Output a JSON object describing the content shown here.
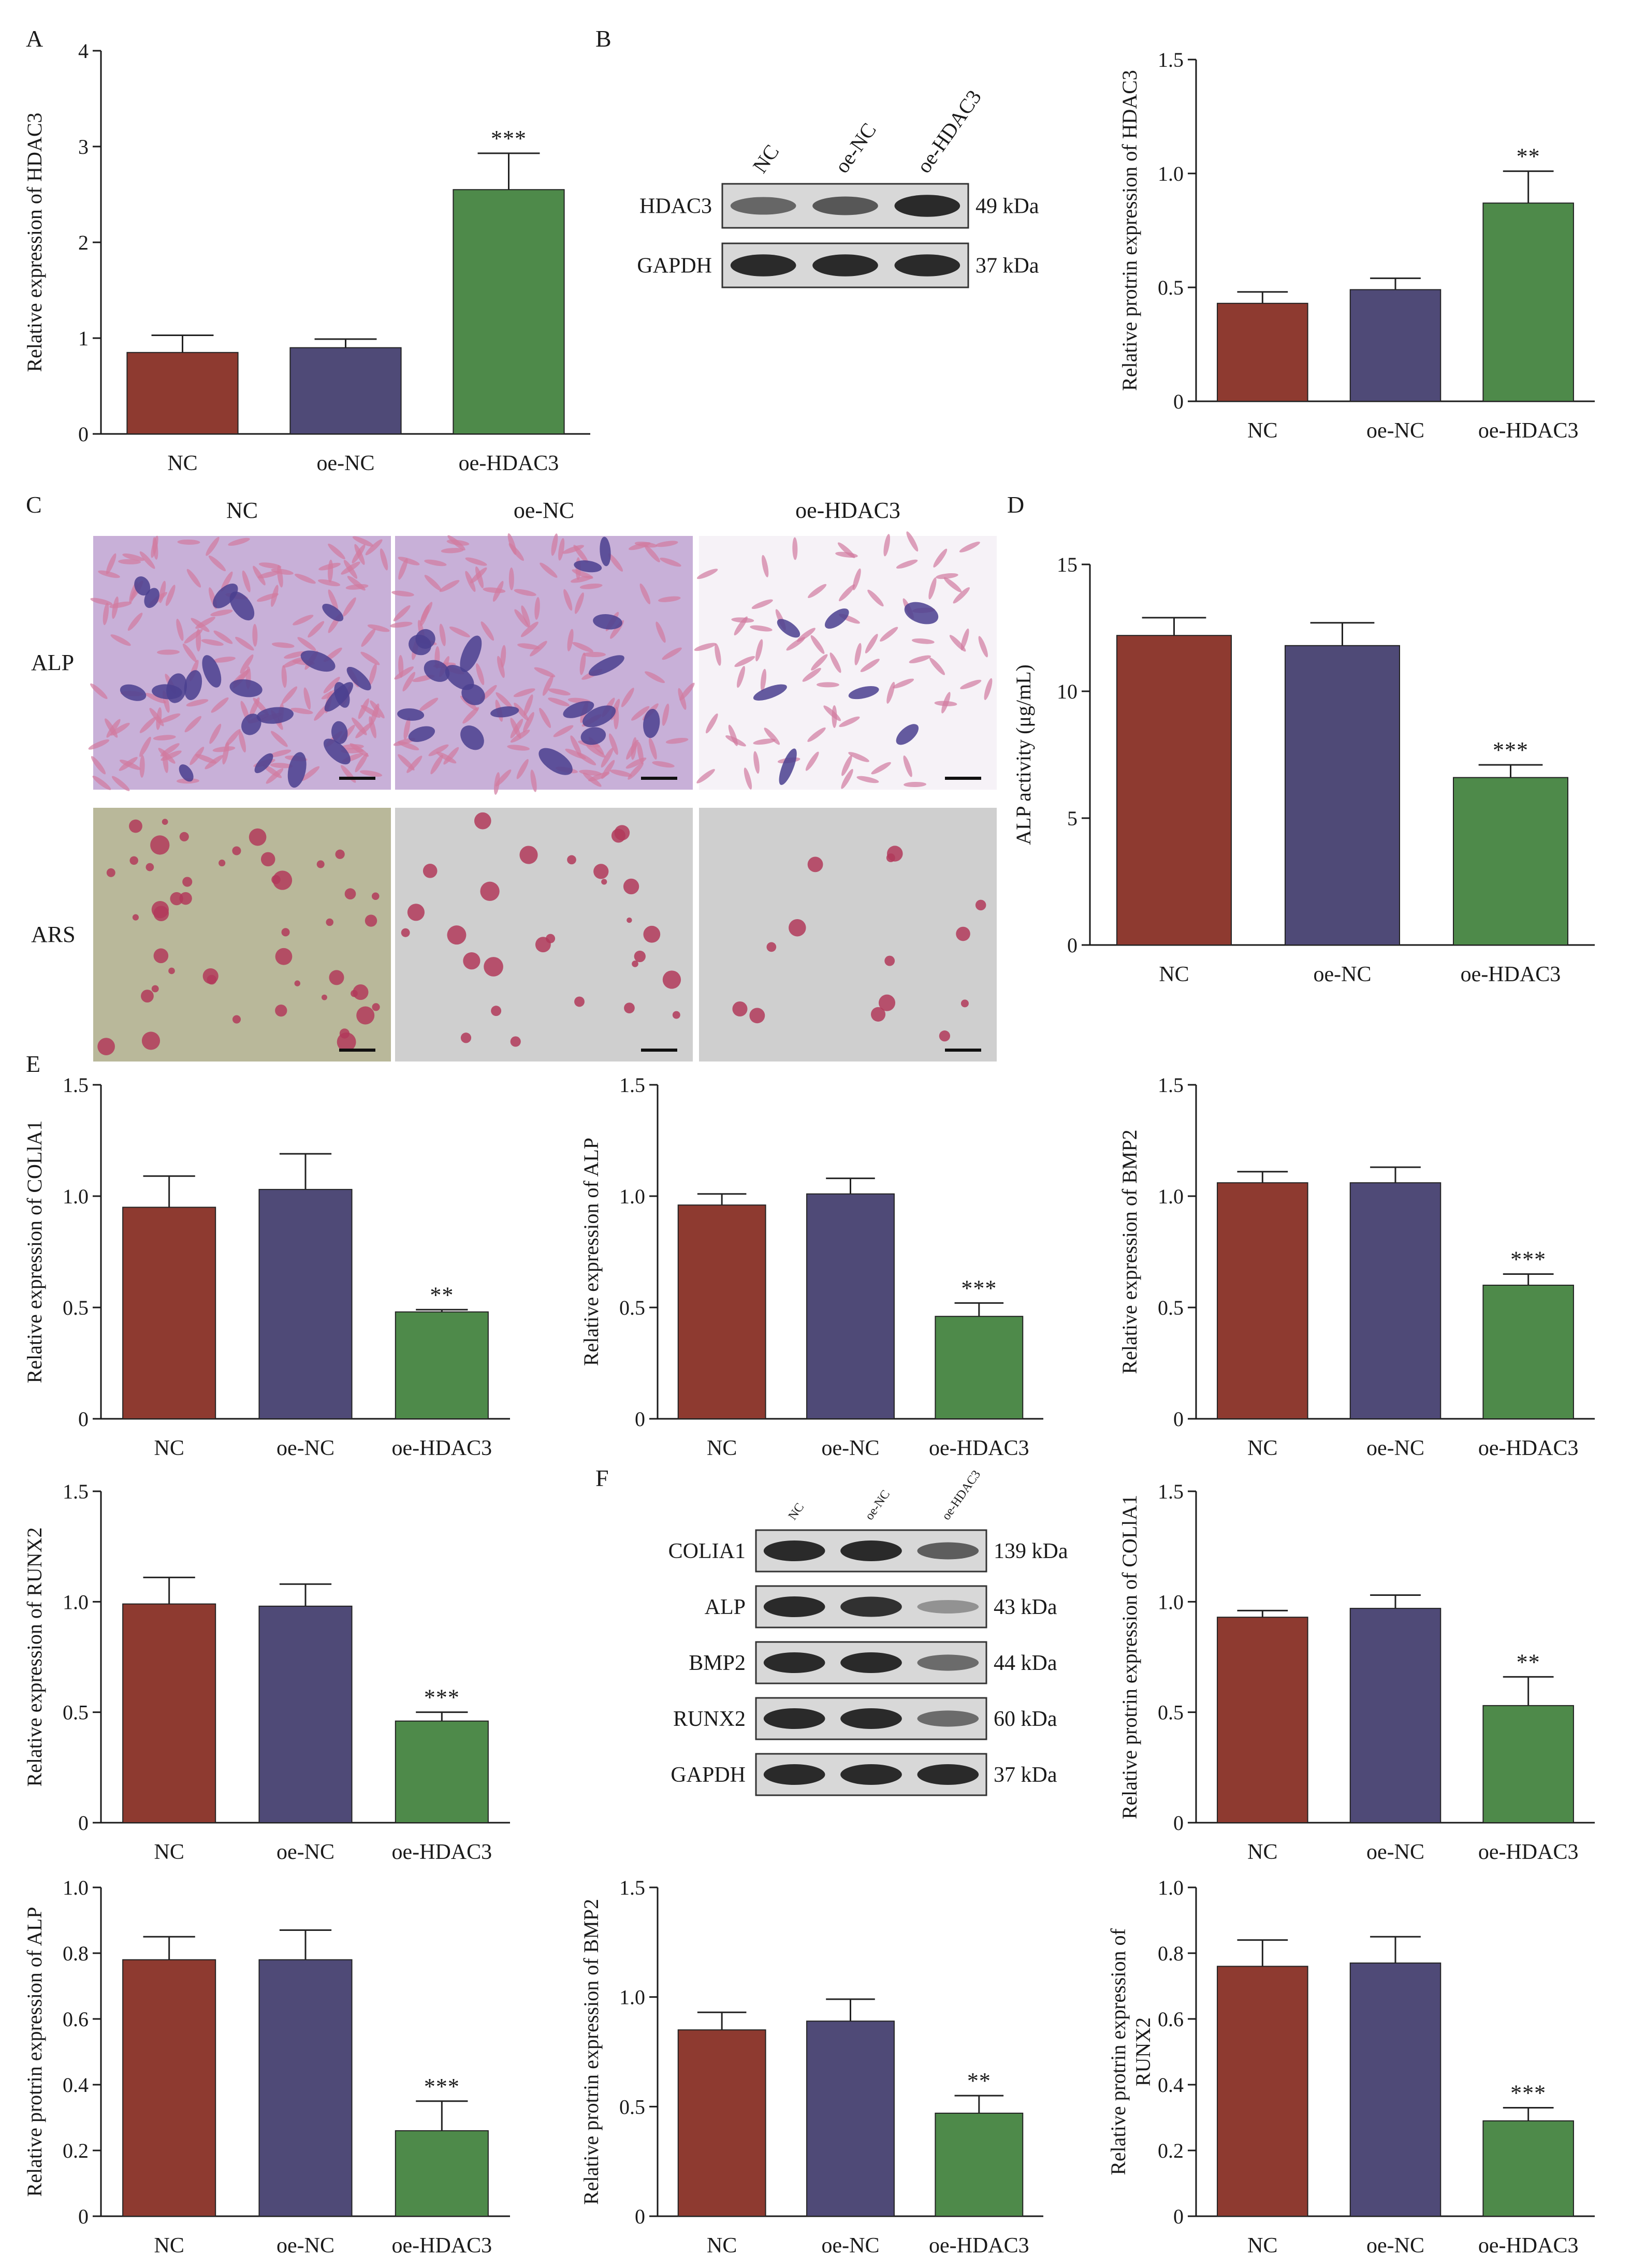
{
  "colors": {
    "NC": "#8e3a30",
    "oe-NC": "#4f4a77",
    "oe-HDAC3": "#4e8a4a",
    "axis": "#1a1a1a",
    "band": "#2a2a2a",
    "blot_bg": "#d8d8d8",
    "alp_stain": "#b89ac8",
    "ars_bg": "#cfcfcf",
    "ars_spot": "#b23a5a"
  },
  "panel_letters": [
    "A",
    "B",
    "C",
    "D",
    "E",
    "F"
  ],
  "chart_data": [
    {
      "id": "A",
      "type": "bar",
      "categories": [
        "NC",
        "oe-NC",
        "oe-HDAC3"
      ],
      "values": [
        0.85,
        0.9,
        2.55
      ],
      "errors": [
        0.18,
        0.09,
        0.38
      ],
      "significance": [
        "",
        "",
        "***"
      ],
      "ylabel": "Relative expression of HDAC3",
      "ylim": [
        0,
        4
      ],
      "yticks": [
        "0",
        "1",
        "2",
        "3",
        "4"
      ]
    },
    {
      "id": "B",
      "type": "bar",
      "categories": [
        "NC",
        "oe-NC",
        "oe-HDAC3"
      ],
      "values": [
        0.43,
        0.49,
        0.87
      ],
      "errors": [
        0.05,
        0.05,
        0.14
      ],
      "significance": [
        "",
        "",
        "**"
      ],
      "ylabel": "Relative protrin expression of HDAC3",
      "ylim": [
        0,
        1.5
      ],
      "yticks": [
        "0",
        "0.5",
        "1.0",
        "1.5"
      ]
    },
    {
      "id": "D",
      "type": "bar",
      "categories": [
        "NC",
        "oe-NC",
        "oe-HDAC3"
      ],
      "values": [
        12.2,
        11.8,
        6.6
      ],
      "errors": [
        0.7,
        0.9,
        0.5
      ],
      "significance": [
        "",
        "",
        "***"
      ],
      "ylabel": "ALP activity (μg/mL)",
      "ylim": [
        0,
        15
      ],
      "yticks": [
        "0",
        "5",
        "10",
        "15"
      ]
    },
    {
      "id": "E1",
      "type": "bar",
      "categories": [
        "NC",
        "oe-NC",
        "oe-HDAC3"
      ],
      "values": [
        0.95,
        1.03,
        0.48
      ],
      "errors": [
        0.14,
        0.16,
        0.01
      ],
      "significance": [
        "",
        "",
        "**"
      ],
      "ylabel": "Relative expression of COLlA1",
      "ylim": [
        0,
        1.5
      ],
      "yticks": [
        "0",
        "0.5",
        "1.0",
        "1.5"
      ]
    },
    {
      "id": "E2",
      "type": "bar",
      "categories": [
        "NC",
        "oe-NC",
        "oe-HDAC3"
      ],
      "values": [
        0.96,
        1.01,
        0.46
      ],
      "errors": [
        0.05,
        0.07,
        0.06
      ],
      "significance": [
        "",
        "",
        "***"
      ],
      "ylabel": "Relative expression of ALP",
      "ylim": [
        0,
        1.5
      ],
      "yticks": [
        "0",
        "0.5",
        "1.0",
        "1.5"
      ]
    },
    {
      "id": "E3",
      "type": "bar",
      "categories": [
        "NC",
        "oe-NC",
        "oe-HDAC3"
      ],
      "values": [
        1.06,
        1.06,
        0.6
      ],
      "errors": [
        0.05,
        0.07,
        0.05
      ],
      "significance": [
        "",
        "",
        "***"
      ],
      "ylabel": "Relative expression of BMP2",
      "ylim": [
        0,
        1.5
      ],
      "yticks": [
        "0",
        "0.5",
        "1.0",
        "1.5"
      ]
    },
    {
      "id": "E4",
      "type": "bar",
      "categories": [
        "NC",
        "oe-NC",
        "oe-HDAC3"
      ],
      "values": [
        0.99,
        0.98,
        0.46
      ],
      "errors": [
        0.12,
        0.1,
        0.04
      ],
      "significance": [
        "",
        "",
        "***"
      ],
      "ylabel": "Relative expression of RUNX2",
      "ylim": [
        0,
        1.5
      ],
      "yticks": [
        "0",
        "0.5",
        "1.0",
        "1.5"
      ]
    },
    {
      "id": "F1",
      "type": "bar",
      "categories": [
        "NC",
        "oe-NC",
        "oe-HDAC3"
      ],
      "values": [
        0.93,
        0.97,
        0.53
      ],
      "errors": [
        0.03,
        0.06,
        0.13
      ],
      "significance": [
        "",
        "",
        "**"
      ],
      "ylabel": "Relative protrin expression of COLlA1",
      "ylim": [
        0,
        1.5
      ],
      "yticks": [
        "0",
        "0.5",
        "1.0",
        "1.5"
      ]
    },
    {
      "id": "F2",
      "type": "bar",
      "categories": [
        "NC",
        "oe-NC",
        "oe-HDAC3"
      ],
      "values": [
        0.78,
        0.78,
        0.26
      ],
      "errors": [
        0.07,
        0.09,
        0.09
      ],
      "significance": [
        "",
        "",
        "***"
      ],
      "ylabel": "Relative protrin expression of ALP",
      "ylim": [
        0,
        1.0
      ],
      "yticks": [
        "0",
        "0.2",
        "0.4",
        "0.6",
        "0.8",
        "1.0"
      ]
    },
    {
      "id": "F3",
      "type": "bar",
      "categories": [
        "NC",
        "oe-NC",
        "oe-HDAC3"
      ],
      "values": [
        0.85,
        0.89,
        0.47
      ],
      "errors": [
        0.08,
        0.1,
        0.08
      ],
      "significance": [
        "",
        "",
        "**"
      ],
      "ylabel": "Relative protrin expression of BMP2",
      "ylim": [
        0,
        1.5
      ],
      "yticks": [
        "0",
        "0.5",
        "1.0",
        "1.5"
      ]
    },
    {
      "id": "F4",
      "type": "bar",
      "categories": [
        "NC",
        "oe-NC",
        "oe-HDAC3"
      ],
      "values": [
        0.76,
        0.77,
        0.29
      ],
      "errors": [
        0.08,
        0.08,
        0.04
      ],
      "significance": [
        "",
        "",
        "***"
      ],
      "ylabel": [
        "Relative protrin expression of",
        "RUNX2"
      ],
      "ylim": [
        0,
        1.0
      ],
      "yticks": [
        "0",
        "0.2",
        "0.4",
        "0.6",
        "0.8",
        "1.0"
      ]
    }
  ],
  "blot_B": {
    "lanes": [
      "NC",
      "oe-NC",
      "oe-HDAC3"
    ],
    "bands": [
      {
        "name": "HDAC3",
        "kda": "49 kDa",
        "intensity": [
          0.55,
          0.65,
          1.0
        ]
      },
      {
        "name": "GAPDH",
        "kda": "37 kDa",
        "intensity": [
          1.0,
          1.0,
          1.0
        ]
      }
    ]
  },
  "blot_F": {
    "lanes": [
      "NC",
      "oe-NC",
      "oe-HDAC3"
    ],
    "bands": [
      {
        "name": "COLIA1",
        "kda": "139 kDa",
        "intensity": [
          1.0,
          1.0,
          0.6
        ]
      },
      {
        "name": "ALP",
        "kda": "43 kDa",
        "intensity": [
          1.0,
          0.95,
          0.2
        ]
      },
      {
        "name": "BMP2",
        "kda": "44 kDa",
        "intensity": [
          1.0,
          1.0,
          0.5
        ]
      },
      {
        "name": "RUNX2",
        "kda": "60 kDa",
        "intensity": [
          1.0,
          1.0,
          0.5
        ]
      },
      {
        "name": "GAPDH",
        "kda": "37 kDa",
        "intensity": [
          1.0,
          1.0,
          1.0
        ]
      }
    ]
  },
  "micrographs": {
    "columns": [
      "NC",
      "oe-NC",
      "oe-HDAC3"
    ],
    "rows": [
      "ALP",
      "ARS"
    ],
    "alp_density": [
      1.0,
      0.85,
      0.3
    ],
    "ars_density": [
      1.0,
      0.55,
      0.2
    ]
  }
}
